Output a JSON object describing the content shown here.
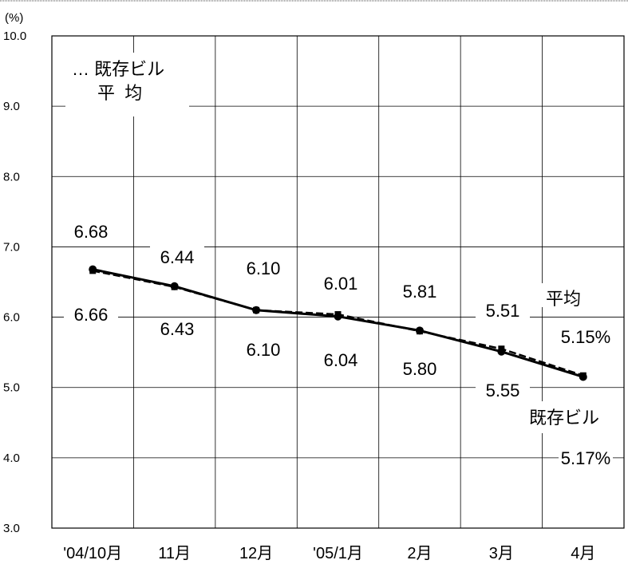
{
  "chart_data": {
    "type": "line",
    "y_unit_label": "(%)",
    "categories": [
      "'04/10月",
      "11月",
      "12月",
      "'05/1月",
      "2月",
      "3月",
      "4月"
    ],
    "ylim": [
      3.0,
      10.0
    ],
    "y_ticks": [
      "3.0",
      "4.0",
      "5.0",
      "6.0",
      "7.0",
      "8.0",
      "9.0",
      "10.0"
    ],
    "grid": true,
    "series": [
      {
        "name": "既存ビル",
        "style": "solid",
        "marker": "circle",
        "values": [
          6.68,
          6.44,
          6.1,
          6.01,
          5.81,
          5.51,
          5.15
        ],
        "value_labels": [
          "6.68",
          "6.44",
          "6.10",
          "6.01",
          "5.81",
          "5.51",
          "5.15%"
        ]
      },
      {
        "name": "平均",
        "style": "dashed",
        "marker": "square",
        "values": [
          6.66,
          6.43,
          6.1,
          6.04,
          5.8,
          5.55,
          5.17
        ],
        "value_labels": [
          "6.66",
          "6.43",
          "6.10",
          "6.04",
          "5.80",
          "5.55",
          "5.17%"
        ]
      }
    ],
    "annotations": {
      "legend_line1": "… 既存ビル",
      "legend_line2": "平  均",
      "right_label_avg": "平均",
      "right_label_existing": "既存ビル"
    },
    "colors": {
      "line": "#000000",
      "grid": "#000000",
      "background": "#ffffff"
    }
  }
}
